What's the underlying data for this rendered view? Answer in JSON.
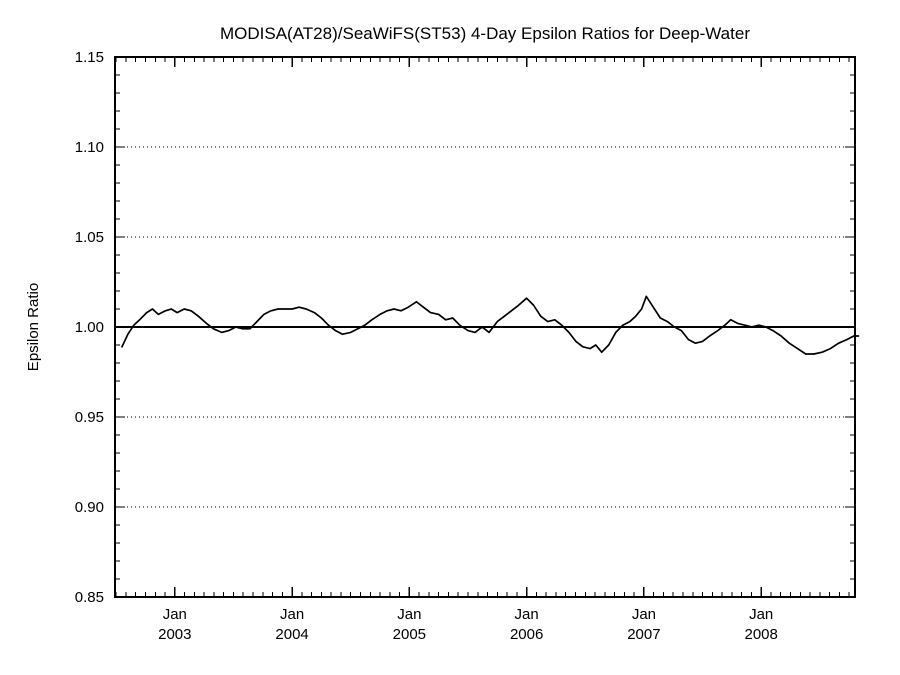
{
  "chart_data": {
    "type": "line",
    "title": "MODISA(AT28)/SeaWiFS(ST53) 4-Day Epsilon Ratios for Deep-Water",
    "xlabel": "",
    "ylabel": "Epsilon Ratio",
    "ylim": [
      0.85,
      1.15
    ],
    "yticks": [
      0.85,
      0.9,
      0.95,
      1.0,
      1.05,
      1.1,
      1.15
    ],
    "ytick_labels": [
      "0.85",
      "0.90",
      "0.95",
      "1.00",
      "1.05",
      "1.10",
      "1.15"
    ],
    "y_minor_step": 0.01,
    "xlim": [
      2002.49,
      2008.8
    ],
    "xticks": [
      {
        "x": 2003,
        "line1": "Jan",
        "line2": "2003"
      },
      {
        "x": 2004,
        "line1": "Jan",
        "line2": "2004"
      },
      {
        "x": 2005,
        "line1": "Jan",
        "line2": "2005"
      },
      {
        "x": 2006,
        "line1": "Jan",
        "line2": "2006"
      },
      {
        "x": 2007,
        "line1": "Jan",
        "line2": "2007"
      },
      {
        "x": 2008,
        "line1": "Jan",
        "line2": "2008"
      }
    ],
    "x_minor_step_months": 1,
    "reference_line_y": 1.0,
    "grid": "dotted-horizontal-at-major-yticks",
    "legend": "none",
    "line_color": "#000000",
    "background_color": "#ffffff",
    "series": [
      {
        "name": "MODISA(AT28)/SeaWiFS(ST53) 4-day epsilon ratio",
        "x": [
          2002.55,
          2002.6,
          2002.65,
          2002.7,
          2002.76,
          2002.81,
          2002.86,
          2002.92,
          2002.97,
          2003.02,
          2003.08,
          2003.14,
          2003.2,
          2003.27,
          2003.33,
          2003.4,
          2003.46,
          2003.52,
          2003.58,
          2003.64,
          2003.7,
          2003.76,
          2003.82,
          2003.88,
          2003.94,
          2004.0,
          2004.06,
          2004.12,
          2004.19,
          2004.25,
          2004.31,
          2004.37,
          2004.43,
          2004.5,
          2004.56,
          2004.62,
          2004.68,
          2004.75,
          2004.81,
          2004.87,
          2004.93,
          2004.99,
          2005.06,
          2005.12,
          2005.18,
          2005.25,
          2005.31,
          2005.37,
          2005.43,
          2005.5,
          2005.56,
          2005.62,
          2005.68,
          2005.75,
          2005.81,
          2005.87,
          2005.93,
          2006.0,
          2006.06,
          2006.12,
          2006.18,
          2006.24,
          2006.3,
          2006.36,
          2006.42,
          2006.48,
          2006.54,
          2006.59,
          2006.64,
          2006.7,
          2006.76,
          2006.82,
          2006.88,
          2006.93,
          2006.98,
          2007.02,
          2007.08,
          2007.14,
          2007.2,
          2007.26,
          2007.32,
          2007.38,
          2007.44,
          2007.5,
          2007.56,
          2007.63,
          2007.69,
          2007.74,
          2007.8,
          2007.86,
          2007.92,
          2007.98,
          2008.04,
          2008.1,
          2008.17,
          2008.24,
          2008.31,
          2008.38,
          2008.45,
          2008.52,
          2008.59,
          2008.66,
          2008.73,
          2008.79,
          2008.83
        ],
        "y": [
          0.989,
          0.996,
          1.001,
          1.004,
          1.008,
          1.01,
          1.007,
          1.009,
          1.01,
          1.008,
          1.01,
          1.009,
          1.006,
          1.002,
          0.999,
          0.997,
          0.998,
          1.0,
          0.999,
          0.999,
          1.003,
          1.007,
          1.009,
          1.01,
          1.01,
          1.01,
          1.011,
          1.01,
          1.008,
          1.005,
          1.001,
          0.998,
          0.996,
          0.997,
          0.999,
          1.001,
          1.004,
          1.007,
          1.009,
          1.01,
          1.009,
          1.011,
          1.014,
          1.011,
          1.008,
          1.007,
          1.004,
          1.005,
          1.001,
          0.998,
          0.997,
          1.0,
          0.997,
          1.003,
          1.006,
          1.009,
          1.012,
          1.016,
          1.012,
          1.006,
          1.003,
          1.004,
          1.001,
          0.997,
          0.992,
          0.989,
          0.988,
          0.99,
          0.986,
          0.99,
          0.997,
          1.001,
          1.003,
          1.006,
          1.01,
          1.017,
          1.011,
          1.005,
          1.003,
          1.0,
          0.998,
          0.993,
          0.991,
          0.992,
          0.995,
          0.998,
          1.001,
          1.004,
          1.002,
          1.001,
          1.0,
          1.001,
          1.0,
          0.998,
          0.995,
          0.991,
          0.988,
          0.985,
          0.985,
          0.986,
          0.988,
          0.991,
          0.993,
          0.995,
          0.995
        ]
      }
    ]
  }
}
